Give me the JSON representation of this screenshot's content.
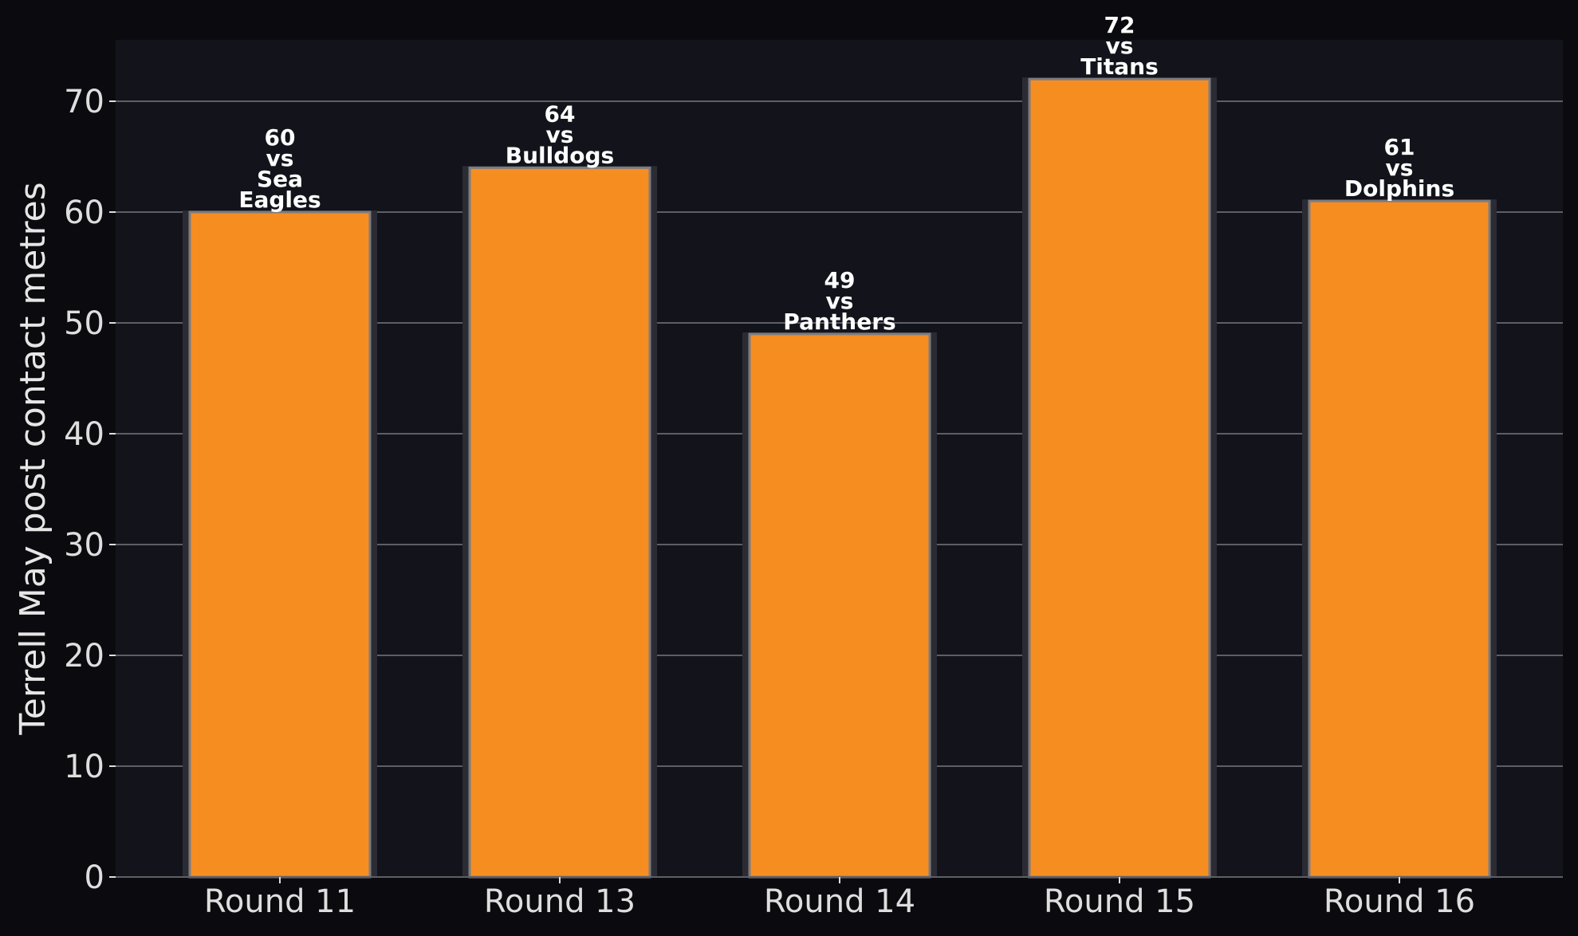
{
  "chart_data": {
    "type": "bar",
    "categories": [
      "Round 11",
      "Round 13",
      "Round 14",
      "Round 15",
      "Round 16"
    ],
    "values": [
      60,
      64,
      49,
      72,
      61
    ],
    "bar_labels": [
      [
        "60",
        "vs",
        "Sea",
        "Eagles"
      ],
      [
        "64",
        "vs",
        "Bulldogs"
      ],
      [
        "49",
        "vs",
        "Panthers"
      ],
      [
        "72",
        "vs",
        "Titans"
      ],
      [
        "61",
        "vs",
        "Dolphins"
      ]
    ],
    "ylabel": "Terrell May post contact metres",
    "ylim": [
      0,
      75.6
    ],
    "yticks": [
      0,
      10,
      20,
      30,
      40,
      50,
      60,
      70
    ],
    "grid": "horizontal",
    "colors": {
      "page_background": "#0b0b0f",
      "plot_background": "#13141b",
      "bar_fill": "#f68d21",
      "bar_edge": "#7c7c82",
      "bar_shadow": "#2a2b33",
      "grid": "#5e5e66",
      "text": "#dedede"
    }
  }
}
